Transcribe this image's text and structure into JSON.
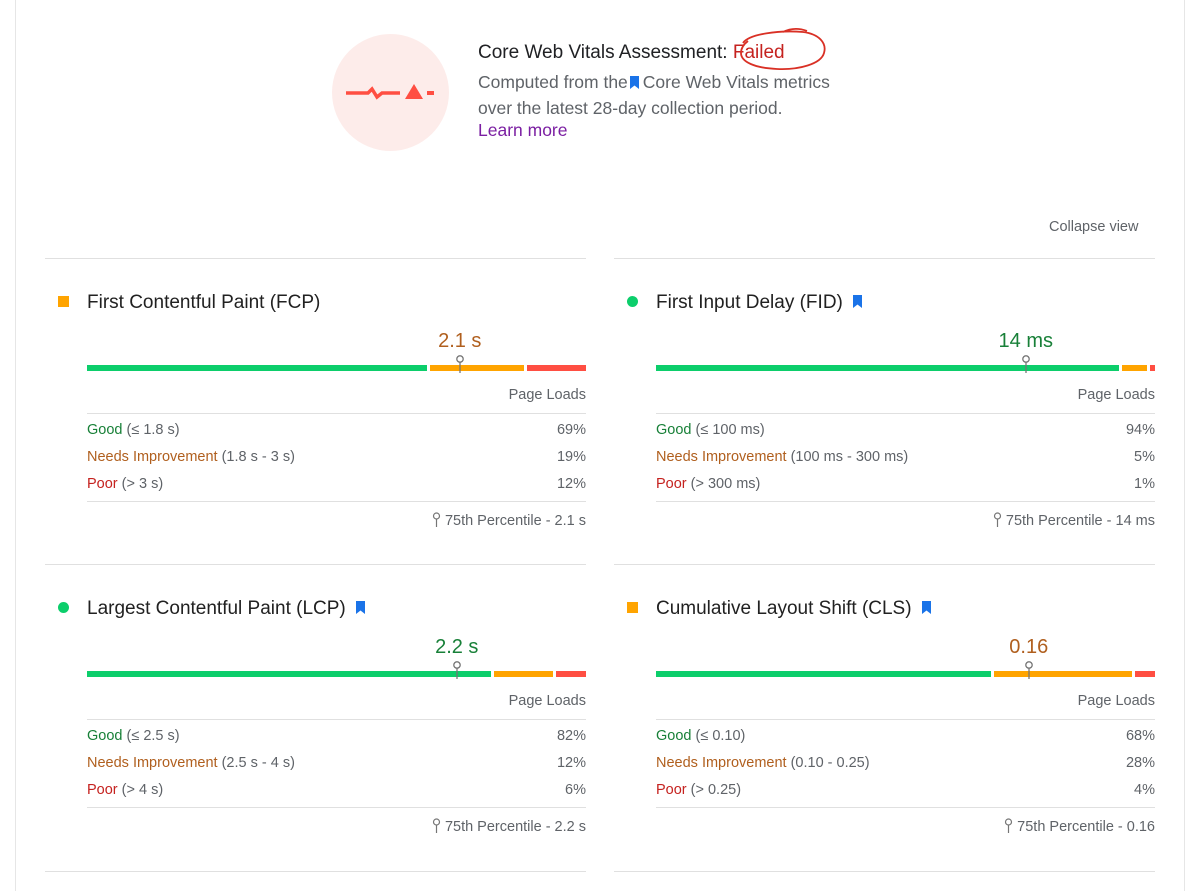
{
  "assessment": {
    "title_prefix": "Core Web Vitals Assessment:",
    "status": "Failed",
    "sub_before": "Computed from the",
    "sub_after": "Core Web Vitals metrics",
    "sub_line2": "over the latest 28-day collection period.",
    "learn_more": "Learn more",
    "icon": "failed-vitals-icon"
  },
  "collapse_label": "Collapse view",
  "colors": {
    "good": "#0cce6b",
    "needs_improvement": "#ffa400",
    "poor": "#ff4e42",
    "bookmark": "#1a73e8"
  },
  "metrics": [
    {
      "title": "First Contentful Paint (FCP)",
      "core": false,
      "status": "needs-improvement",
      "value": "2.1 s",
      "distribution": [
        0.69,
        0.19,
        0.12
      ],
      "p75_fraction": 0.75,
      "page_loads_label": "Page Loads",
      "rows": [
        {
          "label": "Good",
          "range": " (≤ 1.8 s)",
          "pct": "69%"
        },
        {
          "label": "Needs Improvement",
          "range": " (1.8 s - 3 s)",
          "pct": "19%"
        },
        {
          "label": "Poor",
          "range": " (> 3 s)",
          "pct": "12%"
        }
      ],
      "p75": "75th Percentile - 2.1 s"
    },
    {
      "title": "First Input Delay (FID)",
      "core": true,
      "status": "good",
      "value": "14 ms",
      "distribution": [
        0.94,
        0.05,
        0.01
      ],
      "p75_fraction": 0.75,
      "page_loads_label": "Page Loads",
      "rows": [
        {
          "label": "Good",
          "range": " (≤ 100 ms)",
          "pct": "94%"
        },
        {
          "label": "Needs Improvement",
          "range": " (100 ms - 300 ms)",
          "pct": "5%"
        },
        {
          "label": "Poor",
          "range": " (> 300 ms)",
          "pct": "1%"
        }
      ],
      "p75": "75th Percentile - 14 ms"
    },
    {
      "title": "Largest Contentful Paint (LCP)",
      "core": true,
      "status": "good",
      "value": "2.2 s",
      "distribution": [
        0.82,
        0.12,
        0.06
      ],
      "p75_fraction": 0.75,
      "page_loads_label": "Page Loads",
      "rows": [
        {
          "label": "Good",
          "range": " (≤ 2.5 s)",
          "pct": "82%"
        },
        {
          "label": "Needs Improvement",
          "range": " (2.5 s - 4 s)",
          "pct": "12%"
        },
        {
          "label": "Poor",
          "range": " (> 4 s)",
          "pct": "6%"
        }
      ],
      "p75": "75th Percentile - 2.2 s"
    },
    {
      "title": "Cumulative Layout Shift (CLS)",
      "core": true,
      "status": "needs-improvement",
      "value": "0.16",
      "distribution": [
        0.68,
        0.28,
        0.04
      ],
      "p75_fraction": 0.75,
      "page_loads_label": "Page Loads",
      "rows": [
        {
          "label": "Good",
          "range": " (≤ 0.10)",
          "pct": "68%"
        },
        {
          "label": "Needs Improvement",
          "range": " (0.10 - 0.25)",
          "pct": "28%"
        },
        {
          "label": "Poor",
          "range": " (> 0.25)",
          "pct": "4%"
        }
      ],
      "p75": "75th Percentile - 0.16"
    }
  ]
}
